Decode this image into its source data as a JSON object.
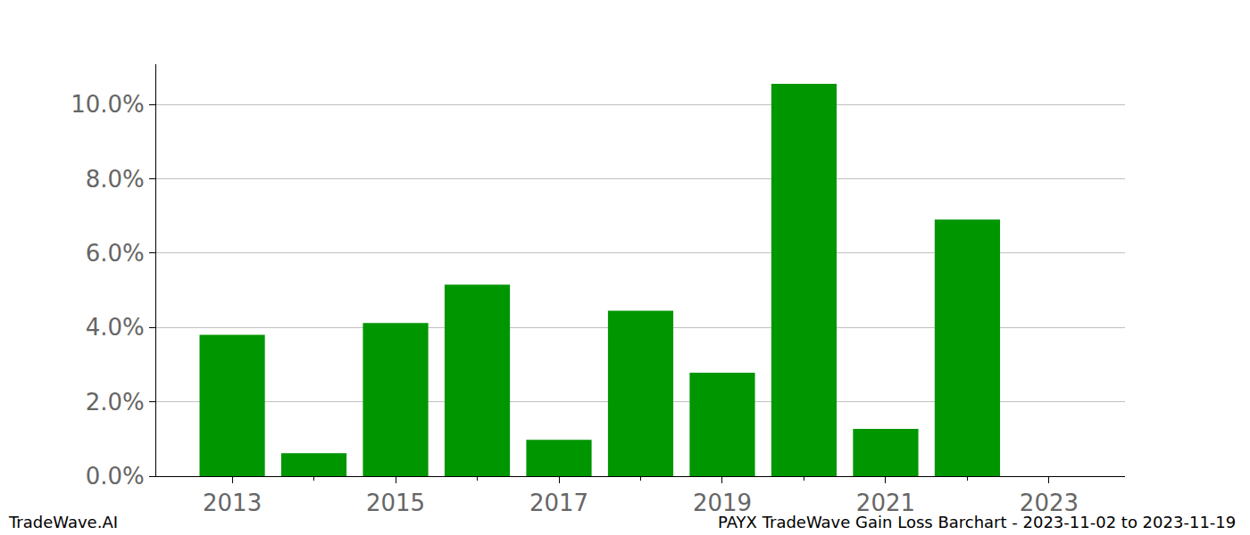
{
  "chart_data": {
    "type": "bar",
    "x": [
      2013,
      2014,
      2015,
      2016,
      2017,
      2018,
      2019,
      2020,
      2021,
      2022
    ],
    "values": [
      3.8,
      0.62,
      4.12,
      5.15,
      0.98,
      4.45,
      2.78,
      10.55,
      1.27,
      6.9
    ],
    "color": "#009600",
    "xlim": [
      2012.07,
      2023.93
    ],
    "xticks": [
      2013,
      2015,
      2017,
      2019,
      2021,
      2023
    ],
    "ylim": [
      0,
      11.08
    ],
    "yticks": [
      {
        "value": 0,
        "label": "0.0%"
      },
      {
        "value": 2,
        "label": "2.0%"
      },
      {
        "value": 4,
        "label": "4.0%"
      },
      {
        "value": 6,
        "label": "6.0%"
      },
      {
        "value": 8,
        "label": "8.0%"
      },
      {
        "value": 10,
        "label": "10.0%"
      }
    ],
    "grid": true,
    "annotations": [
      "TradeWave.AI",
      "PAYX TradeWave Gain Loss Barchart - 2023-11-02 to 2023-11-19"
    ]
  }
}
